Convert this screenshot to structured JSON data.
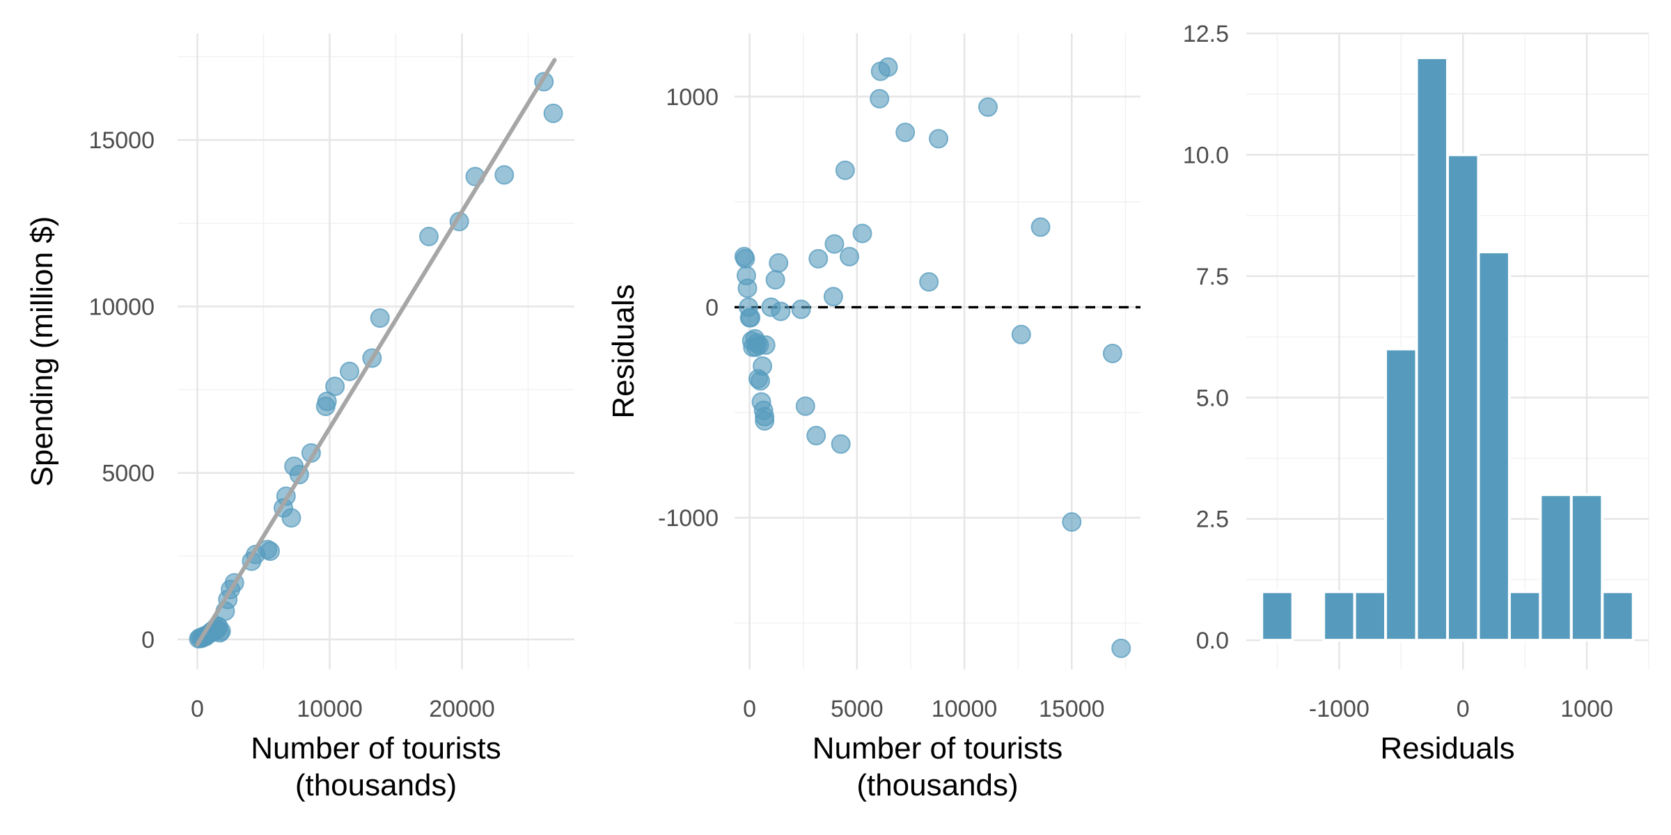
{
  "colors": {
    "points": "#569bbd",
    "fit_line": "#a6a6a6",
    "bars": "#569bbd",
    "zero_line": "#000000"
  },
  "chart_data": [
    {
      "type": "scatter",
      "xlabel": "Number of tourists\n(thousands)",
      "ylabel": "Spending (million $)",
      "xlim": [
        -1500,
        28500
      ],
      "ylim": [
        -900,
        18200
      ],
      "x_ticks": [
        0,
        10000,
        20000
      ],
      "y_ticks": [
        0,
        5000,
        10000,
        15000
      ],
      "grid": true,
      "fit_line": {
        "x": [
          0,
          27000
        ],
        "y": [
          -150,
          17400
        ]
      },
      "x": [
        100,
        200,
        300,
        400,
        500,
        600,
        700,
        800,
        900,
        1000,
        1100,
        1200,
        1300,
        1400,
        1500,
        1600,
        1700,
        1800,
        1500,
        2100,
        2300,
        2500,
        2800,
        4100,
        4400,
        5300,
        5500,
        6500,
        6700,
        7100,
        7300,
        7700,
        8600,
        9700,
        9800,
        10400,
        11500,
        13200,
        13800,
        17500,
        19800,
        21000,
        23200,
        26200,
        26900
      ],
      "y": [
        20,
        50,
        30,
        60,
        100,
        80,
        120,
        150,
        180,
        200,
        250,
        220,
        300,
        350,
        400,
        380,
        200,
        250,
        300,
        850,
        1200,
        1500,
        1700,
        2350,
        2550,
        2700,
        2650,
        3950,
        4300,
        3650,
        5200,
        4950,
        5600,
        7000,
        7150,
        7600,
        8050,
        8450,
        9650,
        12100,
        12550,
        13900,
        13950,
        16750,
        15800
      ]
    },
    {
      "type": "scatter",
      "xlabel": "Number of tourists\n(thousands)",
      "ylabel": "Residuals",
      "xlim": [
        -700,
        18200
      ],
      "ylim": [
        -1720,
        1300
      ],
      "x_ticks": [
        0,
        5000,
        10000,
        15000
      ],
      "y_ticks": [
        -1000,
        0,
        1000
      ],
      "grid": true,
      "reference_line": {
        "y": 0,
        "style": "dashed"
      },
      "x": [
        -250,
        -200,
        -150,
        -100,
        -50,
        0,
        50,
        100,
        150,
        250,
        300,
        350,
        400,
        450,
        500,
        550,
        600,
        650,
        700,
        700,
        750,
        1000,
        1200,
        1350,
        1450,
        2400,
        2600,
        3100,
        3200,
        3900,
        3950,
        4250,
        4450,
        4650,
        5250,
        6050,
        6100,
        6450,
        7250,
        8350,
        8800,
        11100,
        12650,
        13550,
        15000,
        16900,
        17300
      ],
      "y": [
        240,
        230,
        150,
        90,
        0,
        -50,
        -50,
        -160,
        -190,
        -150,
        -190,
        -170,
        -340,
        -180,
        -350,
        -450,
        -280,
        -490,
        -540,
        -520,
        -180,
        0,
        130,
        210,
        -20,
        -10,
        -470,
        -610,
        230,
        50,
        300,
        -650,
        650,
        240,
        350,
        990,
        1120,
        1140,
        830,
        120,
        800,
        950,
        -130,
        380,
        -1020,
        -220,
        -1620
      ]
    },
    {
      "type": "bar",
      "subtype": "histogram",
      "xlabel": "Residuals",
      "ylabel": "",
      "xlim": [
        -1750,
        1500
      ],
      "ylim": [
        -0.6,
        12.5
      ],
      "x_ticks": [
        -1000,
        0,
        1000
      ],
      "y_ticks": [
        0.0,
        2.5,
        5.0,
        7.5,
        10.0,
        12.5
      ],
      "x_tick_labels": [
        "-1000",
        "0",
        "1000"
      ],
      "y_tick_labels": [
        "0.0",
        "2.5",
        "5.0",
        "7.5",
        "10.0",
        "12.5"
      ],
      "grid": true,
      "bin_width": 250,
      "bin_starts": [
        -1625,
        -1375,
        -1125,
        -875,
        -625,
        -375,
        -125,
        125,
        375,
        625,
        875,
        1125
      ],
      "values": [
        1,
        0,
        1,
        1,
        6,
        12,
        10,
        8,
        1,
        3,
        3,
        1
      ]
    }
  ]
}
